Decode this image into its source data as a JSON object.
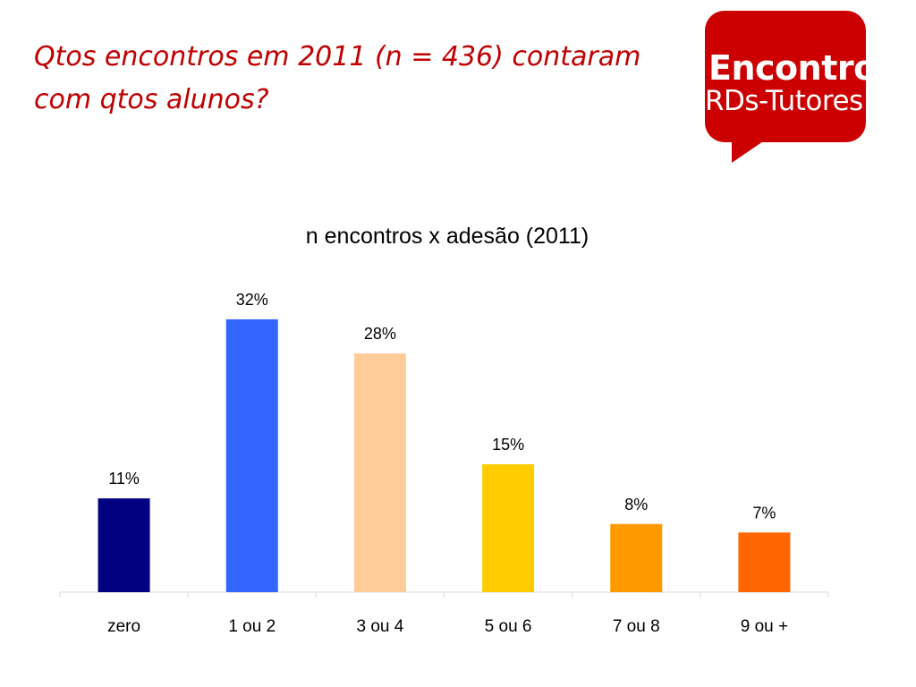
{
  "slide": {
    "title_line1": "Qtos encontros em 2011 (n = 436) contaram",
    "title_line2": "com qtos alunos?"
  },
  "logo": {
    "line1": "Encontro",
    "line2": "RDs-Tutores",
    "color": "#cc0000"
  },
  "chart_data": {
    "type": "bar",
    "title": "n encontros x adesão (2011)",
    "xlabel": "",
    "ylabel": "",
    "categories": [
      "zero",
      "1 ou 2",
      "3 ou 4",
      "5 ou 6",
      "7 ou 8",
      "9 ou +"
    ],
    "values": [
      11,
      32,
      28,
      15,
      8,
      7
    ],
    "data_labels": [
      "11%",
      "32%",
      "28%",
      "15%",
      "8%",
      "7%"
    ],
    "unit": "%",
    "colors": [
      "#000080",
      "#3366ff",
      "#ffcc99",
      "#ffcc00",
      "#ff9900",
      "#ff6600"
    ],
    "ylim": [
      0,
      35
    ],
    "grid": false,
    "legend": "none"
  }
}
